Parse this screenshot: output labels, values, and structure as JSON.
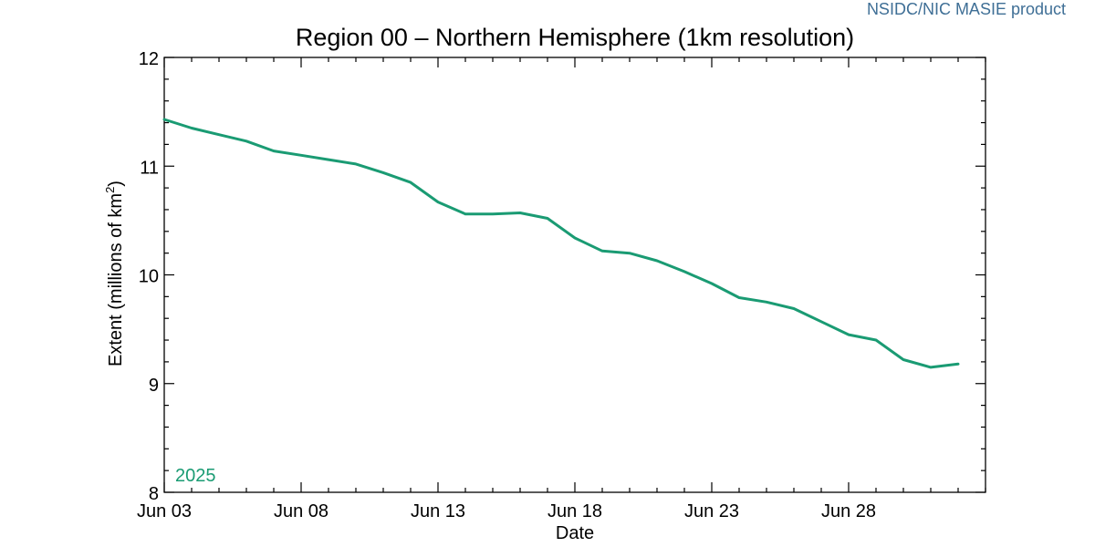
{
  "credit": "NSIDC/NIC MASIE product",
  "chart_data": {
    "type": "line",
    "title": "Region 00 – Northern Hemisphere (1km resolution)",
    "xlabel": "Date",
    "ylabel": "Extent (millions of km",
    "ylabel_sup": "2",
    "ylabel_close": ")",
    "year_label": "2025",
    "series_color": "#1a9b73",
    "ylim": [
      8,
      12
    ],
    "yticks": [
      8,
      9,
      10,
      11,
      12
    ],
    "xlim": [
      "2025-06-03",
      "2025-07-03"
    ],
    "xticks": [
      {
        "date": "2025-06-03",
        "label": "Jun 03"
      },
      {
        "date": "2025-06-08",
        "label": "Jun 08"
      },
      {
        "date": "2025-06-13",
        "label": "Jun 13"
      },
      {
        "date": "2025-06-18",
        "label": "Jun 18"
      },
      {
        "date": "2025-06-23",
        "label": "Jun 23"
      },
      {
        "date": "2025-06-28",
        "label": "Jun 28"
      }
    ],
    "grid": false,
    "series": [
      {
        "x": [
          "2025-06-03",
          "2025-06-04",
          "2025-06-05",
          "2025-06-06",
          "2025-06-07",
          "2025-06-08",
          "2025-06-09",
          "2025-06-10",
          "2025-06-11",
          "2025-06-12",
          "2025-06-13",
          "2025-06-14",
          "2025-06-15",
          "2025-06-16",
          "2025-06-17",
          "2025-06-18",
          "2025-06-19",
          "2025-06-20",
          "2025-06-21",
          "2025-06-22",
          "2025-06-23",
          "2025-06-24",
          "2025-06-25",
          "2025-06-26",
          "2025-06-27",
          "2025-06-28",
          "2025-06-29",
          "2025-06-30",
          "2025-07-01",
          "2025-07-02"
        ],
        "values": [
          11.43,
          11.35,
          11.29,
          11.23,
          11.14,
          11.1,
          11.06,
          11.02,
          10.94,
          10.85,
          10.67,
          10.56,
          10.56,
          10.57,
          10.52,
          10.34,
          10.22,
          10.2,
          10.13,
          10.03,
          9.92,
          9.79,
          9.75,
          9.69,
          9.57,
          9.45,
          9.4,
          9.22,
          9.15,
          9.18
        ]
      }
    ]
  }
}
